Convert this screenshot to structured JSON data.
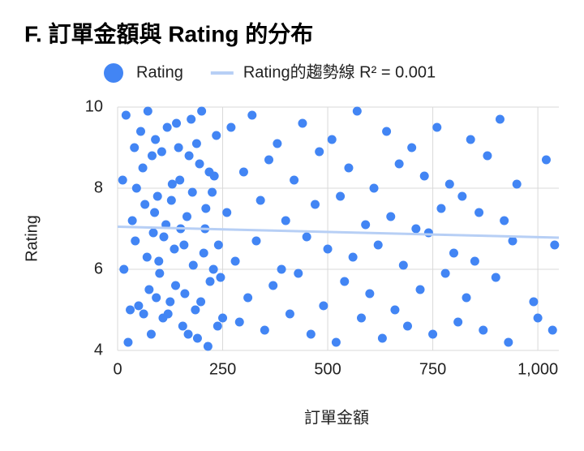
{
  "chart_data": {
    "type": "scatter",
    "title": "F. 訂單金額與 Rating 的分布",
    "x_label": "訂單金額",
    "y_label": "Rating",
    "xlim": [
      0,
      1050
    ],
    "ylim": [
      4,
      10
    ],
    "xticks": [
      0,
      250,
      500,
      750,
      {
        "value": 1000,
        "label": "1,000"
      }
    ],
    "yticks": [
      4,
      6,
      8,
      10
    ],
    "grid": true,
    "series": [
      {
        "name": "Rating",
        "color": "#4285f4",
        "x": [
          20,
          35,
          50,
          60,
          70,
          80,
          90,
          95,
          100,
          110,
          120,
          130,
          140,
          150,
          160,
          170,
          180,
          190,
          200,
          210,
          220,
          230,
          240,
          250,
          15,
          25,
          45,
          55,
          65,
          75,
          85,
          105,
          115,
          125,
          135,
          145,
          155,
          165,
          175,
          185,
          195,
          205,
          215,
          225,
          235,
          245,
          260,
          270,
          280,
          290,
          300,
          310,
          320,
          330,
          340,
          350,
          360,
          370,
          380,
          390,
          400,
          410,
          420,
          430,
          440,
          450,
          460,
          470,
          480,
          490,
          500,
          510,
          520,
          530,
          540,
          550,
          560,
          570,
          580,
          590,
          600,
          610,
          620,
          630,
          640,
          650,
          660,
          670,
          680,
          690,
          700,
          710,
          720,
          730,
          740,
          750,
          760,
          770,
          780,
          790,
          800,
          810,
          820,
          830,
          840,
          850,
          860,
          870,
          880,
          900,
          910,
          920,
          930,
          940,
          950,
          990,
          1000,
          1020,
          1040,
          1035,
          30,
          40,
          88,
          98,
          108,
          118,
          128,
          138,
          148,
          158,
          168,
          178,
          188,
          198,
          208,
          218,
          228,
          238,
          12,
          42,
          62,
          72,
          82,
          92
        ],
        "values": [
          9.8,
          7.2,
          5.1,
          8.5,
          6.3,
          4.4,
          9.2,
          7.8,
          5.9,
          6.8,
          4.9,
          8.1,
          9.6,
          7.0,
          5.4,
          8.8,
          6.1,
          4.3,
          9.9,
          7.5,
          5.7,
          8.3,
          6.6,
          4.8,
          6.0,
          4.2,
          8.0,
          9.4,
          7.6,
          5.5,
          6.9,
          8.9,
          7.1,
          5.2,
          6.5,
          9.0,
          4.6,
          7.3,
          9.7,
          5.0,
          8.6,
          6.4,
          4.1,
          7.9,
          9.3,
          5.8,
          7.4,
          9.5,
          6.2,
          4.7,
          8.4,
          5.3,
          9.8,
          6.7,
          7.7,
          4.5,
          8.7,
          5.6,
          9.1,
          6.0,
          7.2,
          4.9,
          8.2,
          5.9,
          9.6,
          6.8,
          4.4,
          7.6,
          8.9,
          5.1,
          6.5,
          9.2,
          4.2,
          7.8,
          5.7,
          8.5,
          6.3,
          9.9,
          4.8,
          7.1,
          5.4,
          8.0,
          6.6,
          4.3,
          9.4,
          7.3,
          5.0,
          8.6,
          6.1,
          4.6,
          9.0,
          7.0,
          5.5,
          8.3,
          6.9,
          4.4,
          9.5,
          7.5,
          5.9,
          8.1,
          6.4,
          4.7,
          7.8,
          5.3,
          9.2,
          6.2,
          7.4,
          4.5,
          8.8,
          5.8,
          9.7,
          7.2,
          4.2,
          6.7,
          8.1,
          5.2,
          4.8,
          8.7,
          6.6,
          4.5,
          5.0,
          9.0,
          7.4,
          6.2,
          4.8,
          9.5,
          7.7,
          5.6,
          8.2,
          6.6,
          4.4,
          7.9,
          9.1,
          5.2,
          7.0,
          8.4,
          6.0,
          4.6,
          8.2,
          6.7,
          4.9,
          9.9,
          8.8,
          5.3
        ]
      },
      {
        "name": "Rating的趨勢線 R² = 0.001",
        "type": "line",
        "color": "#b7cff5",
        "x": [
          0,
          1050
        ],
        "values": [
          7.05,
          6.78
        ]
      }
    ]
  }
}
